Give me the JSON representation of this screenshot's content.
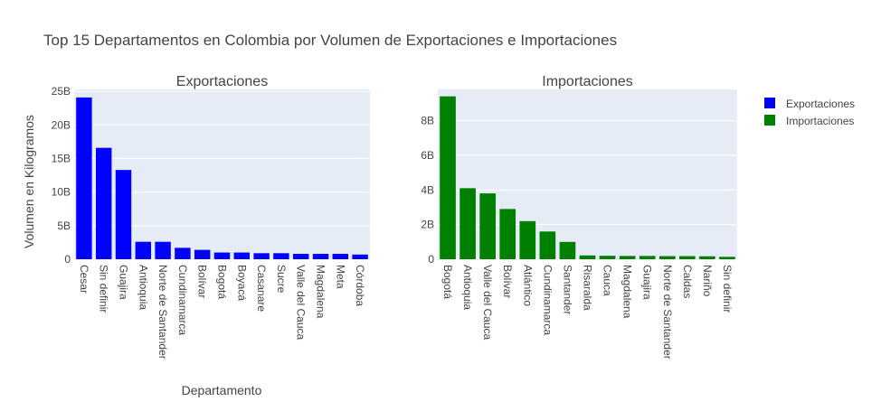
{
  "page_title": "Top 15 Departamentos en Colombia por Volumen de Exportaciones e Importaciones",
  "legend": {
    "placement": "top-right",
    "items": [
      {
        "label": "Exportaciones",
        "color": "#0000ff"
      },
      {
        "label": "Importaciones",
        "color": "#008000"
      }
    ]
  },
  "chart_data": [
    {
      "type": "bar",
      "title": "Exportaciones",
      "xlabel": "Departamento",
      "ylabel": "Volumen en Kilogramos",
      "color": "#0000ff",
      "ylim": [
        0,
        25.3
      ],
      "yticks": [
        0,
        5,
        10,
        15,
        20,
        25
      ],
      "ytick_labels": [
        "0",
        "5B",
        "10B",
        "15B",
        "20B",
        "25B"
      ],
      "grid": true,
      "categories": [
        "Cesar",
        "Sin definir",
        "Guajira",
        "Antioquia",
        "Norte de Santander",
        "Cundinamarca",
        "Bolívar",
        "Bogotá",
        "Boyacá",
        "Casanare",
        "Sucre",
        "Valle del Cauca",
        "Magdalena",
        "Meta",
        "Córdoba"
      ],
      "series": [
        {
          "name": "Exportaciones",
          "values": [
            24.1,
            16.6,
            13.3,
            2.6,
            2.6,
            1.7,
            1.4,
            1.0,
            1.0,
            0.9,
            0.9,
            0.8,
            0.8,
            0.8,
            0.7
          ]
        }
      ]
    },
    {
      "type": "bar",
      "title": "Importaciones",
      "xlabel": "",
      "ylabel": "",
      "color": "#008000",
      "ylim": [
        0,
        9.8
      ],
      "yticks": [
        0,
        2,
        4,
        6,
        8
      ],
      "ytick_labels": [
        "0",
        "2B",
        "4B",
        "6B",
        "8B"
      ],
      "grid": true,
      "categories": [
        "Bogotá",
        "Antioquia",
        "Valle del Cauca",
        "Bolívar",
        "Atlántico",
        "Cundinamarca",
        "Santander",
        "Risaralda",
        "Cauca",
        "Magdalena",
        "Guajira",
        "Norte de Santander",
        "Caldas",
        "Nariño",
        "Sin definir"
      ],
      "series": [
        {
          "name": "Importaciones",
          "values": [
            9.4,
            4.1,
            3.8,
            2.9,
            2.2,
            1.6,
            1.0,
            0.22,
            0.2,
            0.19,
            0.19,
            0.18,
            0.18,
            0.17,
            0.14
          ]
        }
      ]
    }
  ]
}
